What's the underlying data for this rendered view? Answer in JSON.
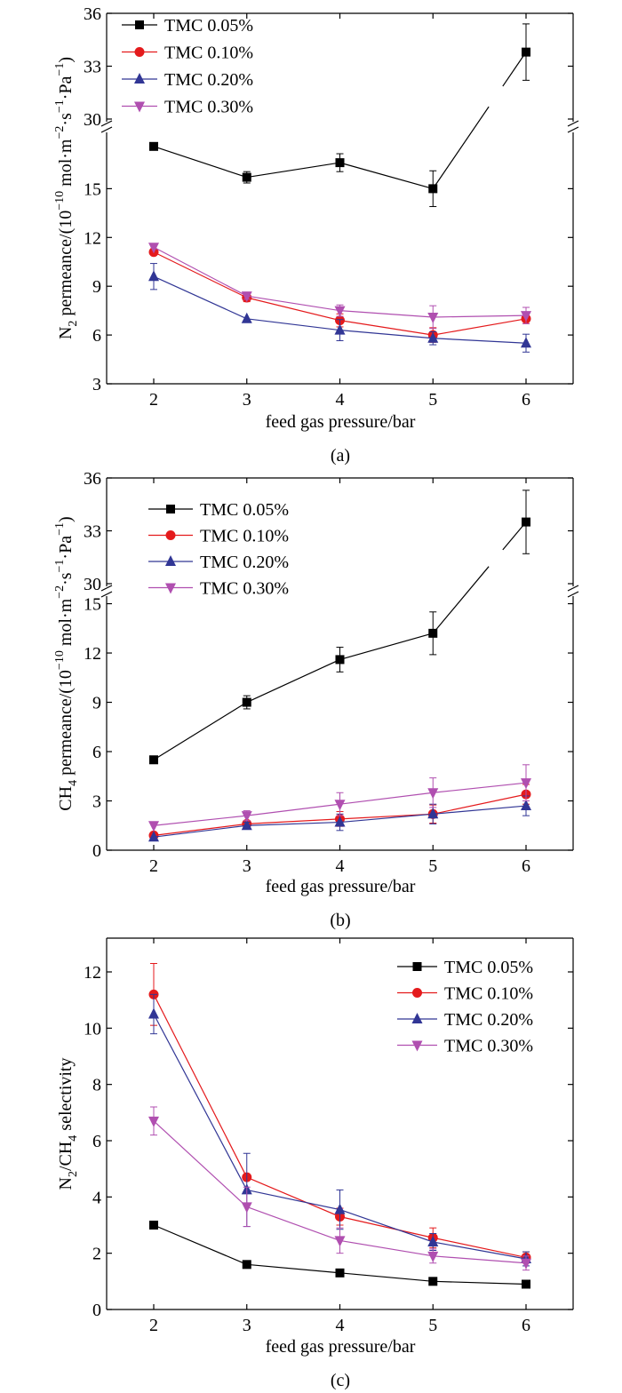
{
  "chart_data": [
    {
      "type": "line",
      "panel_label": "(a)",
      "xlabel": "feed gas pressure/bar",
      "ylabel": {
        "part1": "N",
        "sub1": "2",
        "part2": " permeance/(10",
        "sup1": "−10",
        "part3": " mol·m",
        "sup2": "−2",
        "part4": "·s",
        "sup3": "−1",
        "part5": "·Pa",
        "sup4": "−1",
        "part6": ")"
      },
      "x_ticks": [
        "2",
        "3",
        "4",
        "5",
        "6"
      ],
      "y_ticks_lower": [
        "3",
        "6",
        "9",
        "12",
        "15"
      ],
      "y_ticks_upper": [
        "30",
        "33",
        "36"
      ],
      "axis_break": {
        "lower": [
          3,
          18.3
        ],
        "upper": [
          30,
          36
        ]
      },
      "x": [
        2,
        3,
        4,
        5,
        6
      ],
      "series": [
        {
          "name": "TMC 0.05%",
          "color": "#000000",
          "marker": "square",
          "values": [
            17.6,
            15.7,
            16.6,
            15.0,
            33.8
          ],
          "errors": [
            0.0,
            0.35,
            0.55,
            1.1,
            1.6
          ]
        },
        {
          "name": "TMC 0.10%",
          "color": "#e41a1c",
          "marker": "circle",
          "values": [
            11.1,
            8.3,
            6.9,
            6.0,
            7.0
          ],
          "errors": [
            0.0,
            0.25,
            0.4,
            0.45,
            0.3
          ]
        },
        {
          "name": "TMC 0.20%",
          "color": "#313695",
          "marker": "triangle-up",
          "values": [
            9.6,
            7.0,
            6.3,
            5.8,
            5.5
          ],
          "errors": [
            0.8,
            0.0,
            0.65,
            0.4,
            0.55
          ]
        },
        {
          "name": "TMC 0.30%",
          "color": "#b04fb0",
          "marker": "triangle-down",
          "values": [
            11.4,
            8.4,
            7.5,
            7.1,
            7.2
          ],
          "errors": [
            0.0,
            0.2,
            0.35,
            0.7,
            0.5
          ]
        }
      ],
      "legend_position": "top-left"
    },
    {
      "type": "line",
      "panel_label": "(b)",
      "xlabel": "feed gas pressure/bar",
      "ylabel": {
        "part1": "CH",
        "sub1": "4",
        "part2": " permeance/(10",
        "sup1": "−10",
        "part3": " mol·m",
        "sup2": "−2",
        "part4": "·s",
        "sup3": "−1",
        "part5": "·Pa",
        "sup4": "−1",
        "part6": ")"
      },
      "x_ticks": [
        "2",
        "3",
        "4",
        "5",
        "6"
      ],
      "y_ticks_lower": [
        "0",
        "3",
        "6",
        "9",
        "12",
        "15"
      ],
      "y_ticks_upper": [
        "30",
        "33",
        "36"
      ],
      "axis_break": {
        "lower": [
          0,
          15.3
        ],
        "upper": [
          30,
          36
        ]
      },
      "x": [
        2,
        3,
        4,
        5,
        6
      ],
      "series": [
        {
          "name": "TMC 0.05%",
          "color": "#000000",
          "marker": "square",
          "values": [
            5.5,
            9.0,
            11.6,
            13.2,
            33.5
          ],
          "errors": [
            0.0,
            0.4,
            0.75,
            1.3,
            1.8
          ]
        },
        {
          "name": "TMC 0.10%",
          "color": "#e41a1c",
          "marker": "circle",
          "values": [
            0.9,
            1.6,
            1.9,
            2.2,
            3.4
          ],
          "errors": [
            0.0,
            0.2,
            0.45,
            0.55,
            0.6
          ]
        },
        {
          "name": "TMC 0.20%",
          "color": "#313695",
          "marker": "triangle-up",
          "values": [
            0.8,
            1.5,
            1.7,
            2.2,
            2.7
          ],
          "errors": [
            0.0,
            0.2,
            0.5,
            0.6,
            0.6
          ]
        },
        {
          "name": "TMC 0.30%",
          "color": "#b04fb0",
          "marker": "triangle-down",
          "values": [
            1.5,
            2.1,
            2.8,
            3.5,
            4.1
          ],
          "errors": [
            0.0,
            0.3,
            0.7,
            0.9,
            1.1
          ]
        }
      ],
      "legend_position": "top-left"
    },
    {
      "type": "line",
      "panel_label": "(c)",
      "xlabel": "feed gas pressure/bar",
      "ylabel": {
        "part1": "N",
        "sub1": "2",
        "part2": "/CH",
        "sub2": "4",
        "part3": " selectivity"
      },
      "x_ticks": [
        "2",
        "3",
        "4",
        "5",
        "6"
      ],
      "y_ticks": [
        "0",
        "2",
        "4",
        "6",
        "8",
        "10",
        "12"
      ],
      "ylim": [
        0,
        13.2
      ],
      "x": [
        2,
        3,
        4,
        5,
        6
      ],
      "series": [
        {
          "name": "TMC 0.05%",
          "color": "#000000",
          "marker": "square",
          "values": [
            3.0,
            1.6,
            1.3,
            1.0,
            0.9
          ],
          "errors": [
            0.0,
            0.0,
            0.0,
            0.0,
            0.0
          ]
        },
        {
          "name": "TMC 0.10%",
          "color": "#e41a1c",
          "marker": "circle",
          "values": [
            11.2,
            4.7,
            3.3,
            2.55,
            1.85
          ],
          "errors": [
            1.1,
            0.0,
            0.3,
            0.35,
            0.2
          ]
        },
        {
          "name": "TMC 0.20%",
          "color": "#313695",
          "marker": "triangle-up",
          "values": [
            10.5,
            4.25,
            3.55,
            2.4,
            1.8
          ],
          "errors": [
            0.7,
            1.3,
            0.7,
            0.3,
            0.25
          ]
        },
        {
          "name": "TMC 0.30%",
          "color": "#b04fb0",
          "marker": "triangle-down",
          "values": [
            6.7,
            3.65,
            2.45,
            1.9,
            1.65
          ],
          "errors": [
            0.5,
            0.7,
            0.45,
            0.25,
            0.25
          ]
        }
      ],
      "legend_position": "top-right"
    }
  ]
}
